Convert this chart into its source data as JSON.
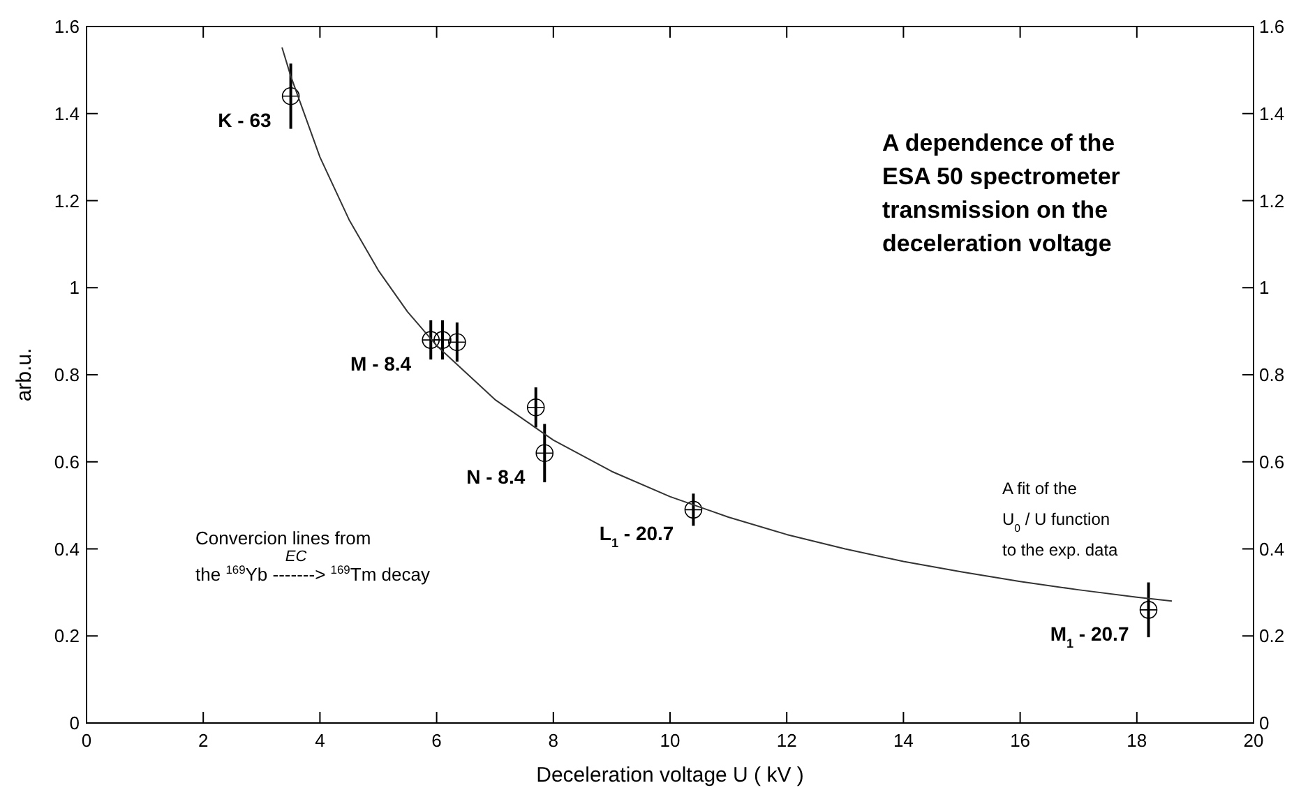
{
  "chart_data": {
    "type": "scatter",
    "title": "A dependence of the\nESA 50 spectrometer\ntransmission on the\ndeceleration voltage",
    "xlabel": "Deceleration voltage U ( kV )",
    "ylabel": "arb.u.",
    "xlim": [
      0,
      20
    ],
    "xticks": [
      0,
      2,
      4,
      6,
      8,
      10,
      12,
      14,
      16,
      18,
      20
    ],
    "ylim": [
      0,
      1.6
    ],
    "yticks": [
      0,
      0.2,
      0.4,
      0.6,
      0.8,
      1,
      1.2,
      1.4,
      1.6
    ],
    "y2lim": [
      0,
      1.6
    ],
    "y2ticks": [
      0,
      0.2,
      0.4,
      0.6,
      0.8,
      1,
      1.2,
      1.4,
      1.6
    ],
    "grid": false,
    "series": [
      {
        "color": "#000000",
        "marker": "circle",
        "x": [
          3.5,
          5.9,
          6.1,
          6.35,
          7.7,
          7.85,
          10.4,
          18.2
        ],
        "values": [
          1.44,
          0.88,
          0.88,
          0.875,
          0.725,
          0.62,
          0.49,
          0.26
        ],
        "errors": [
          0.075,
          0.045,
          0.045,
          0.045,
          0.046,
          0.067,
          0.037,
          0.063
        ]
      },
      {
        "type": "line",
        "color": "#333333",
        "marker": "none",
        "line_style": "solid",
        "x": [
          3.35,
          3.5,
          4,
          4.5,
          5,
          5.5,
          6,
          7,
          8,
          9,
          10,
          11,
          12,
          13,
          14,
          15,
          16,
          17,
          18,
          18.6
        ],
        "values": [
          1.552,
          1.486,
          1.3,
          1.156,
          1.04,
          0.945,
          0.867,
          0.743,
          0.65,
          0.578,
          0.52,
          0.473,
          0.433,
          0.4,
          0.371,
          0.347,
          0.325,
          0.306,
          0.289,
          0.28
        ]
      }
    ],
    "annotations": [
      {
        "text": "K - 63",
        "x": 3.5,
        "y": 1.44
      },
      {
        "text": "M - 8.4",
        "x": 5.9,
        "y": 0.88
      },
      {
        "text": "N - 8.4",
        "x": 7.85,
        "y": 0.62
      },
      {
        "text": "L$_{1}$ - 20.7",
        "x": 10.4,
        "y": 0.49
      },
      {
        "text": "M$_{1}$ - 20.7",
        "x": 18.2,
        "y": 0.26
      },
      "A fit of the\nU$_{0}$ / U function\nto the exp. data",
      "Convercion lines from\nthe $^{169}$Yb -------> $^{169}$Tm decay",
      "EC"
    ]
  }
}
